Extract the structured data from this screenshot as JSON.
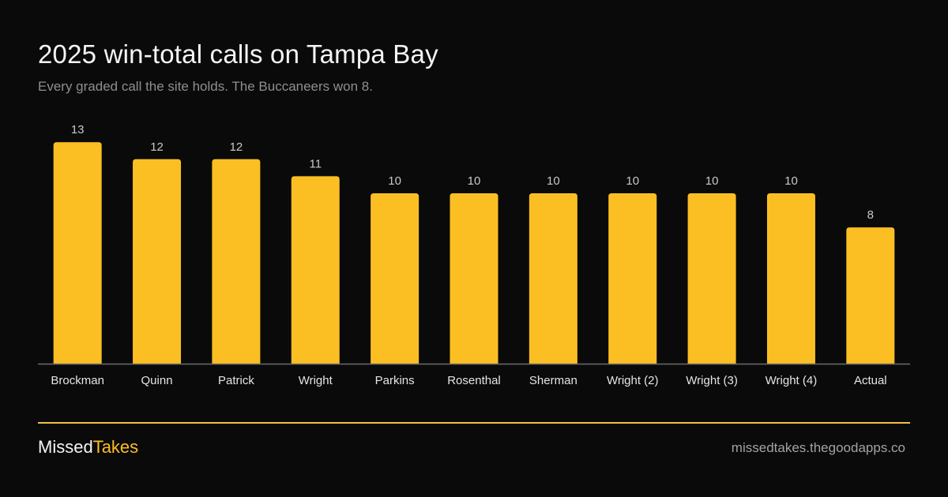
{
  "title": "2025 win-total calls on Tampa Bay",
  "subtitle": "Every graded call the site holds. The Buccaneers won 8.",
  "colors": {
    "background": "#0a0a0a",
    "bar": "#fbbf24",
    "axis": "#6b6b6b",
    "value_label": "#c8c8c8",
    "category_label": "#e5e5e5",
    "footer_rule": "#f2bf45",
    "brand_accent": "#fbbf24"
  },
  "chart_data": {
    "type": "bar",
    "categories": [
      "Brockman",
      "Quinn",
      "Patrick",
      "Wright",
      "Parkins",
      "Rosenthal",
      "Sherman",
      "Wright (2)",
      "Wright (3)",
      "Wright (4)",
      "Actual"
    ],
    "values": [
      13,
      12,
      12,
      11,
      10,
      10,
      10,
      10,
      10,
      10,
      8
    ],
    "title": "2025 win-total calls on Tampa Bay",
    "subtitle": "Every graded call the site holds. The Buccaneers won 8.",
    "xlabel": "",
    "ylabel": "",
    "ylim": [
      0,
      13
    ],
    "grid": false,
    "legend": "none",
    "data_labels": true
  },
  "footer": {
    "brand_part1": "Missed",
    "brand_part2": "Takes",
    "url": "missedtakes.thegoodapps.co"
  }
}
